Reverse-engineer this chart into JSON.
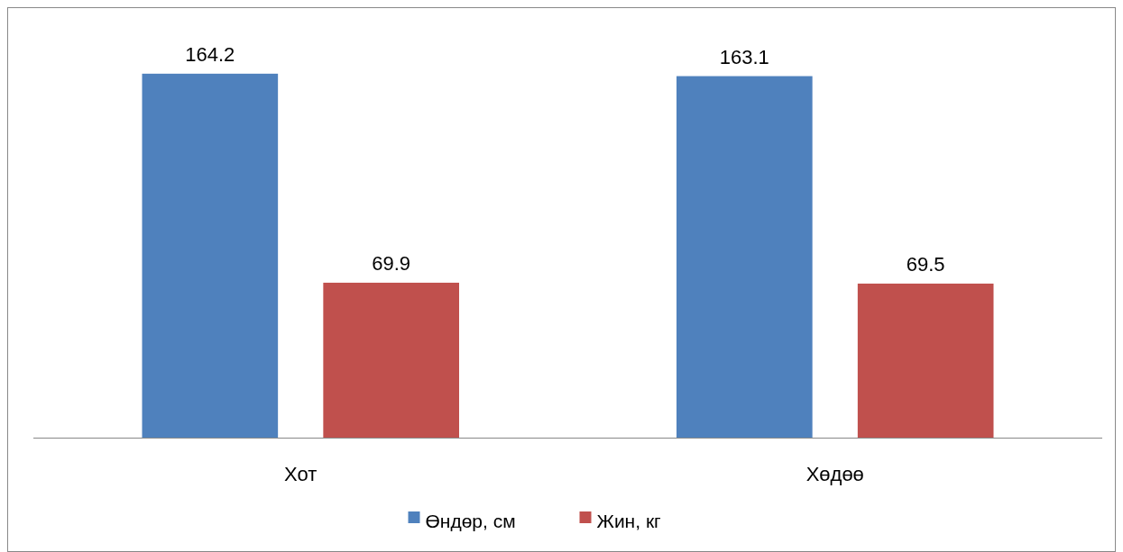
{
  "chart_data": {
    "type": "bar",
    "categories": [
      "Хот",
      "Хөдөө"
    ],
    "series": [
      {
        "name": "Өндөр, см",
        "color": "#4f81bd",
        "values": [
          164.2,
          163.1
        ]
      },
      {
        "name": "Жин, кг",
        "color": "#c0504d",
        "values": [
          69.9,
          69.5
        ]
      }
    ],
    "data_labels": true,
    "legend": "bottom",
    "grid": false
  }
}
